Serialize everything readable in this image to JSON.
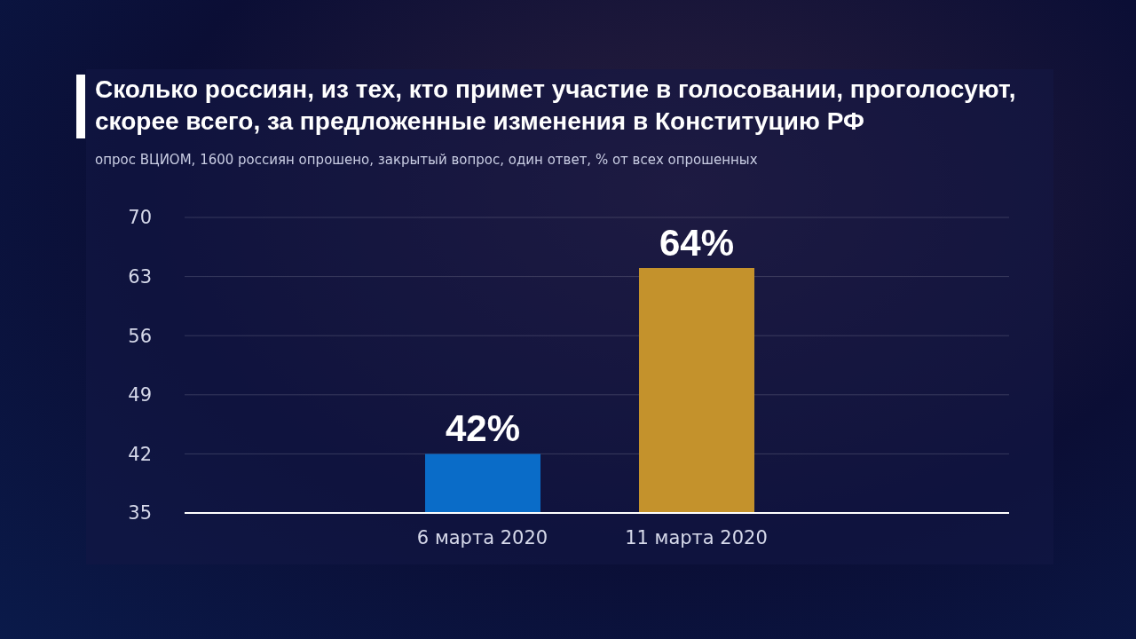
{
  "chart_data": {
    "type": "bar",
    "title": "Сколько россиян, из тех, кто примет участие в голосовании, проголосуют, скорее всего, за предложенные изменения в Конституцию РФ",
    "subtitle": "опрос ВЦИОМ, 1600 россиян опрошено, закрытый вопрос, один ответ, % от всех опрошенных",
    "categories": [
      "6 марта 2020",
      "11 марта 2020"
    ],
    "values": [
      42,
      64
    ],
    "colors": [
      "#0a6cc8",
      "#c4922c"
    ],
    "value_labels": [
      "42%",
      "64%"
    ],
    "ylim": [
      35,
      70
    ],
    "yticks": [
      35,
      42,
      49,
      56,
      63,
      70
    ],
    "grid": "y"
  }
}
